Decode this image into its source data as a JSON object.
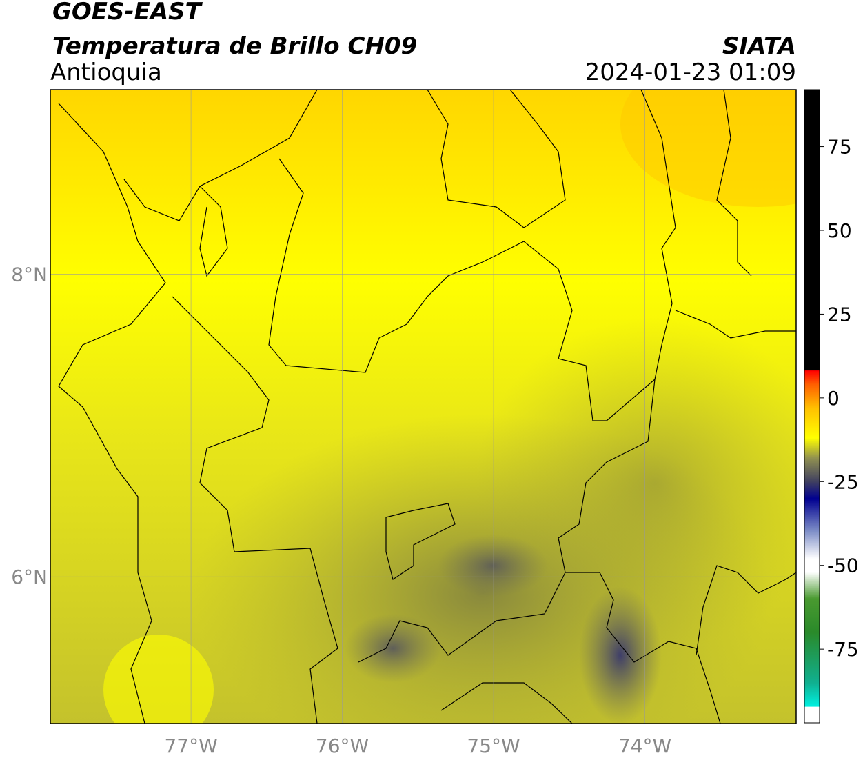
{
  "header": {
    "satellite": "GOES-EAST",
    "product": "Temperatura de Brillo CH09",
    "region": "Antioquia",
    "source": "SIATA",
    "datetime": "2024-01-23 01:09"
  },
  "map": {
    "xlim": [
      -77.93,
      -73.0
    ],
    "ylim": [
      5.03,
      9.22
    ],
    "xticks": [
      {
        "value": -77,
        "label": "77°W"
      },
      {
        "value": -76,
        "label": "76°W"
      },
      {
        "value": -75,
        "label": "75°W"
      },
      {
        "value": -74,
        "label": "74°W"
      }
    ],
    "yticks": [
      {
        "value": 6,
        "label": "6°N"
      },
      {
        "value": 8,
        "label": "8°N"
      }
    ],
    "grid": true
  },
  "colorbar": {
    "lim": [
      -97,
      92
    ],
    "ticks": [
      75,
      50,
      25,
      0,
      -25,
      -50,
      -75
    ]
  }
}
